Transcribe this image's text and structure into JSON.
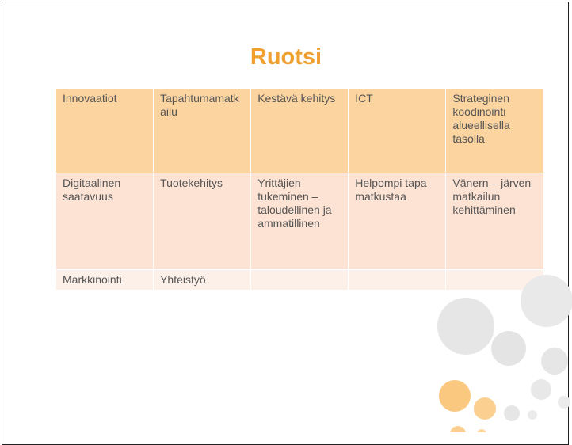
{
  "title": "Ruotsi",
  "table": {
    "rows": [
      [
        "Innovaatiot",
        "Tapahtumamatkailu",
        "Kestävä kehitys",
        "ICT",
        "Strateginen koodinointi alueellisella tasolla"
      ],
      [
        "Digitaalinen saatavuus",
        "Tuotekehitys",
        "Yrittäjien tukeminen – taloudellinen ja ammatillinen",
        "Helpompi tapa matkustaa",
        "Vänern – järven matkailun kehittäminen"
      ],
      [
        "Markkinointi",
        "Yhteistyö"
      ]
    ]
  }
}
